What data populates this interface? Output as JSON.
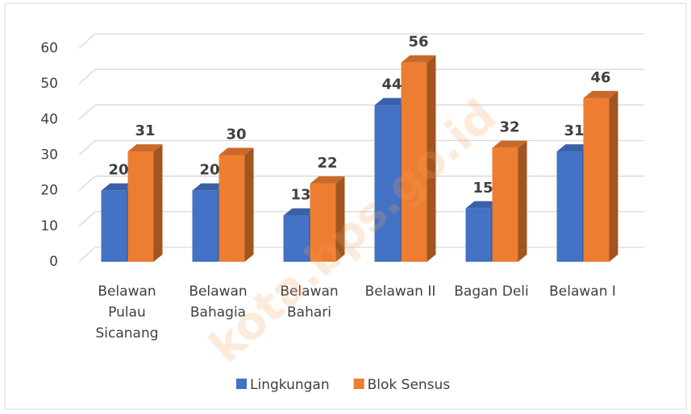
{
  "chart_data": {
    "type": "bar3d",
    "categories": [
      "Belawan Pulau Sicanang",
      "Belawan Bahagia",
      "Belawan Bahari",
      "Belawan II",
      "Bagan Deli",
      "Belawan I"
    ],
    "series": [
      {
        "name": "Lingkungan",
        "color": "#4472c4",
        "values": [
          20,
          20,
          13,
          44,
          15,
          31
        ]
      },
      {
        "name": "Blok Sensus",
        "color": "#ed7d31",
        "values": [
          31,
          30,
          22,
          56,
          32,
          46
        ]
      }
    ],
    "ylim": [
      0,
      60
    ],
    "yticks": [
      0,
      10,
      20,
      30,
      40,
      50,
      60
    ],
    "grid": true,
    "legend": "bottom",
    "watermark": "kota.bps.go.id"
  }
}
